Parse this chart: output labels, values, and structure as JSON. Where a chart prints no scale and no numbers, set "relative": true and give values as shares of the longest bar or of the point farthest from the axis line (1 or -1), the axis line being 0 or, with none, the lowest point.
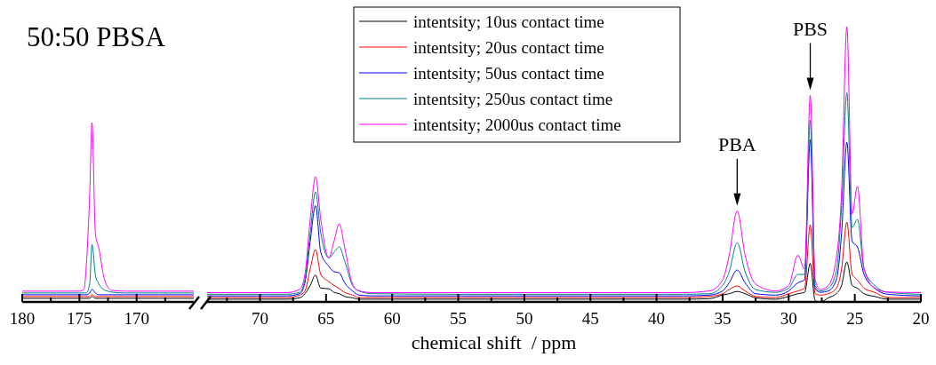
{
  "chart_data": [
    {
      "type": "line",
      "title": "50:50 PBSA",
      "relative": true,
      "tick_labels": "x",
      "xlim": [
        180,
        165
      ],
      "xticks": [
        180,
        {
          "value": 177.5,
          "label": null
        },
        175,
        {
          "value": 172.5,
          "label": null
        },
        170,
        {
          "value": 167.5,
          "label": null
        }
      ],
      "x": [
        180,
        177,
        175,
        174.6,
        174.4,
        174.1,
        173.9,
        173.6,
        173.3,
        172.9,
        172.5,
        172.2,
        171,
        168,
        165
      ],
      "series": [
        {
          "color": "#000000",
          "values": [
            0.02,
            0.02,
            0.02,
            0.02,
            0.02,
            0.02,
            0.03,
            0.02,
            0.02,
            0.02,
            0.02,
            0.02,
            0.02,
            0.02,
            0.02
          ]
        },
        {
          "color": "#ff0000",
          "values": [
            0.03,
            0.03,
            0.03,
            0.03,
            0.03,
            0.03,
            0.04,
            0.03,
            0.03,
            0.03,
            0.03,
            0.03,
            0.03,
            0.03,
            0.03
          ]
        },
        {
          "color": "#0000ff",
          "values": [
            0.04,
            0.04,
            0.04,
            0.04,
            0.04,
            0.05,
            0.07,
            0.05,
            0.04,
            0.04,
            0.04,
            0.04,
            0.04,
            0.04,
            0.04
          ]
        },
        {
          "color": "#008080",
          "values": [
            0.05,
            0.05,
            0.05,
            0.05,
            0.05,
            0.1,
            0.32,
            0.15,
            0.1,
            0.07,
            0.06,
            0.055,
            0.05,
            0.05,
            0.05
          ]
        },
        {
          "color": "#ff00ff",
          "values": [
            0.06,
            0.06,
            0.06,
            0.07,
            0.2,
            0.6,
            1,
            0.38,
            0.3,
            0.15,
            0.08,
            0.065,
            0.06,
            0.06,
            0.06
          ]
        }
      ]
    },
    {
      "type": "line",
      "relative": true,
      "tick_labels": "x",
      "xlabel": "chemical shift  / ppm",
      "legend": "top",
      "xlim": [
        74,
        20
      ],
      "xticks": [
        {
          "value": 72.5,
          "label": null
        },
        70,
        {
          "value": 67.5,
          "label": null
        },
        65,
        {
          "value": 62.5,
          "label": null
        },
        60,
        {
          "value": 57.5,
          "label": null
        },
        55,
        {
          "value": 52.5,
          "label": null
        },
        50,
        {
          "value": 47.5,
          "label": null
        },
        45,
        {
          "value": 42.5,
          "label": null
        },
        40,
        {
          "value": 37.5,
          "label": null
        },
        35,
        {
          "value": 32.5,
          "label": null
        },
        30,
        {
          "value": 27.5,
          "label": null
        },
        25,
        {
          "value": 22.5,
          "label": null
        },
        20
      ],
      "annotations": [
        {
          "text": "PBA",
          "x": 33.9,
          "y": 0.33
        },
        {
          "text": "PBS",
          "x": 28.37,
          "y": 0.75
        }
      ],
      "x": [
        74,
        70,
        68,
        67,
        66.6,
        66.2,
        65.8,
        65.4,
        64.8,
        64.4,
        64.0,
        63.6,
        63.0,
        62.5,
        61.5,
        55,
        45,
        38,
        36,
        35,
        34.5,
        33.9,
        33.3,
        32.5,
        31,
        30,
        29.3,
        28.8,
        28.37,
        28.0,
        27.6,
        27.0,
        26.4,
        26.0,
        25.6,
        25.2,
        24.8,
        24.3,
        23.5,
        22.5,
        20
      ],
      "series": [
        {
          "name": "intentsity; 10us contact time",
          "color": "#000000",
          "values": [
            0.01,
            0.01,
            0.01,
            0.015,
            0.03,
            0.06,
            0.097,
            0.05,
            0.048,
            0.035,
            0.03,
            0.02,
            0.015,
            0.01,
            0.01,
            0.01,
            0.01,
            0.01,
            0.012,
            0.025,
            0.03,
            0.038,
            0.03,
            0.015,
            0.01,
            0.02,
            0.03,
            0.035,
            0.14,
            0.005,
            0.0,
            0.015,
            0.03,
            0.06,
            0.145,
            0.06,
            0.05,
            0.03,
            0.02,
            0.01,
            0.01
          ]
        },
        {
          "name": "intentsity; 20us contact time",
          "color": "#ff0000",
          "values": [
            0.016,
            0.016,
            0.016,
            0.025,
            0.04,
            0.12,
            0.19,
            0.1,
            0.074,
            0.06,
            0.048,
            0.035,
            0.025,
            0.016,
            0.016,
            0.016,
            0.016,
            0.016,
            0.02,
            0.03,
            0.045,
            0.058,
            0.04,
            0.02,
            0.016,
            0.03,
            0.04,
            0.05,
            0.28,
            0.03,
            0.025,
            0.03,
            0.05,
            0.12,
            0.29,
            0.1,
            0.08,
            0.05,
            0.035,
            0.016,
            0.016
          ]
        },
        {
          "name": "intentsity; 50us contact time",
          "color": "#0000ff",
          "values": [
            0.022,
            0.022,
            0.022,
            0.03,
            0.07,
            0.22,
            0.35,
            0.18,
            0.13,
            0.11,
            0.106,
            0.07,
            0.04,
            0.025,
            0.022,
            0.022,
            0.022,
            0.022,
            0.025,
            0.04,
            0.07,
            0.116,
            0.07,
            0.03,
            0.025,
            0.04,
            0.07,
            0.08,
            0.59,
            0.05,
            0.035,
            0.04,
            0.08,
            0.25,
            0.58,
            0.22,
            0.2,
            0.1,
            0.05,
            0.028,
            0.022
          ]
        },
        {
          "name": "intentsity; 250us contact time",
          "color": "#008080",
          "values": [
            0.028,
            0.028,
            0.028,
            0.035,
            0.08,
            0.25,
            0.4,
            0.25,
            0.16,
            0.18,
            0.2,
            0.15,
            0.06,
            0.04,
            0.03,
            0.028,
            0.028,
            0.028,
            0.03,
            0.06,
            0.11,
            0.215,
            0.11,
            0.045,
            0.035,
            0.05,
            0.1,
            0.1,
            0.66,
            0.06,
            0.04,
            0.05,
            0.11,
            0.35,
            0.76,
            0.27,
            0.3,
            0.12,
            0.06,
            0.035,
            0.028
          ]
        },
        {
          "name": "intentsity; 2000us contact time",
          "color": "#ff00ff",
          "values": [
            0.034,
            0.034,
            0.034,
            0.045,
            0.1,
            0.3,
            0.455,
            0.3,
            0.16,
            0.22,
            0.284,
            0.2,
            0.065,
            0.04,
            0.034,
            0.034,
            0.034,
            0.034,
            0.04,
            0.08,
            0.17,
            0.33,
            0.17,
            0.065,
            0.04,
            0.06,
            0.17,
            0.12,
            0.75,
            0.08,
            0.045,
            0.06,
            0.16,
            0.4,
            1.0,
            0.32,
            0.42,
            0.12,
            0.05,
            0.036,
            0.034
          ]
        }
      ]
    }
  ]
}
